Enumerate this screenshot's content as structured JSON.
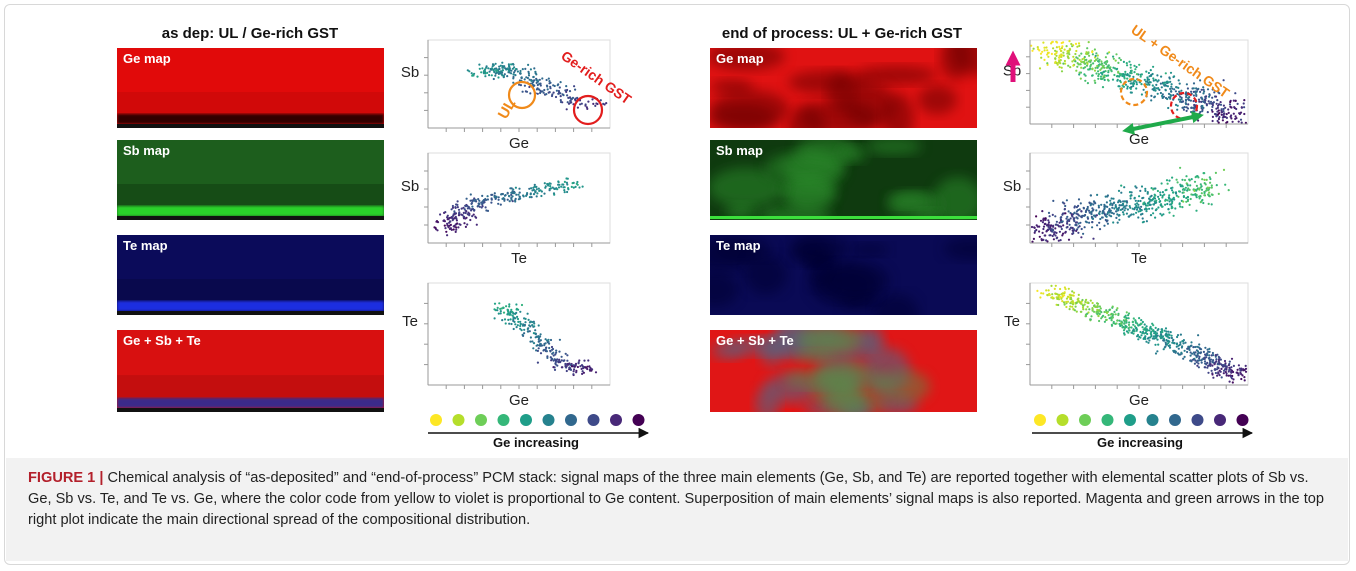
{
  "panels": [
    {
      "title": "as dep: UL / Ge-rich GST",
      "maps": [
        "Ge map",
        "Sb map",
        "Te map",
        "Ge + Sb + Te"
      ],
      "plots": [
        {
          "y_label": "Sb",
          "x_label": "Ge",
          "annotations": [
            "UL",
            "Ge-rich GST"
          ]
        },
        {
          "y_label": "Sb",
          "x_label": "Te"
        },
        {
          "y_label": "Te",
          "x_label": "Ge"
        }
      ],
      "legend": "Ge increasing"
    },
    {
      "title": "end of process: UL + Ge-rich GST",
      "maps": [
        "Ge map",
        "Sb map",
        "Te map",
        "Ge + Sb + Te"
      ],
      "plots": [
        {
          "y_label": "Sb",
          "x_label": "Ge",
          "annotations": [
            "UL + Ge-rich GST"
          ]
        },
        {
          "y_label": "Sb",
          "x_label": "Te"
        },
        {
          "y_label": "Te",
          "x_label": "Ge"
        }
      ],
      "legend": "Ge increasing"
    }
  ],
  "caption": {
    "label": "FIGURE 1 |",
    "text": "Chemical analysis of “as-deposited” and “end-of-process” PCM stack: signal maps of the three main elements (Ge, Sb, and Te) are reported together with elemental scatter plots of Sb vs. Ge, Sb vs. Te, and Te vs. Ge, where the color code from yellow to violet is proportional to Ge content. Superposition of main elements’ signal maps is also reported. Magenta and green arrows in the top right plot indicate the main directional spread of the compositional distribution."
  }
}
